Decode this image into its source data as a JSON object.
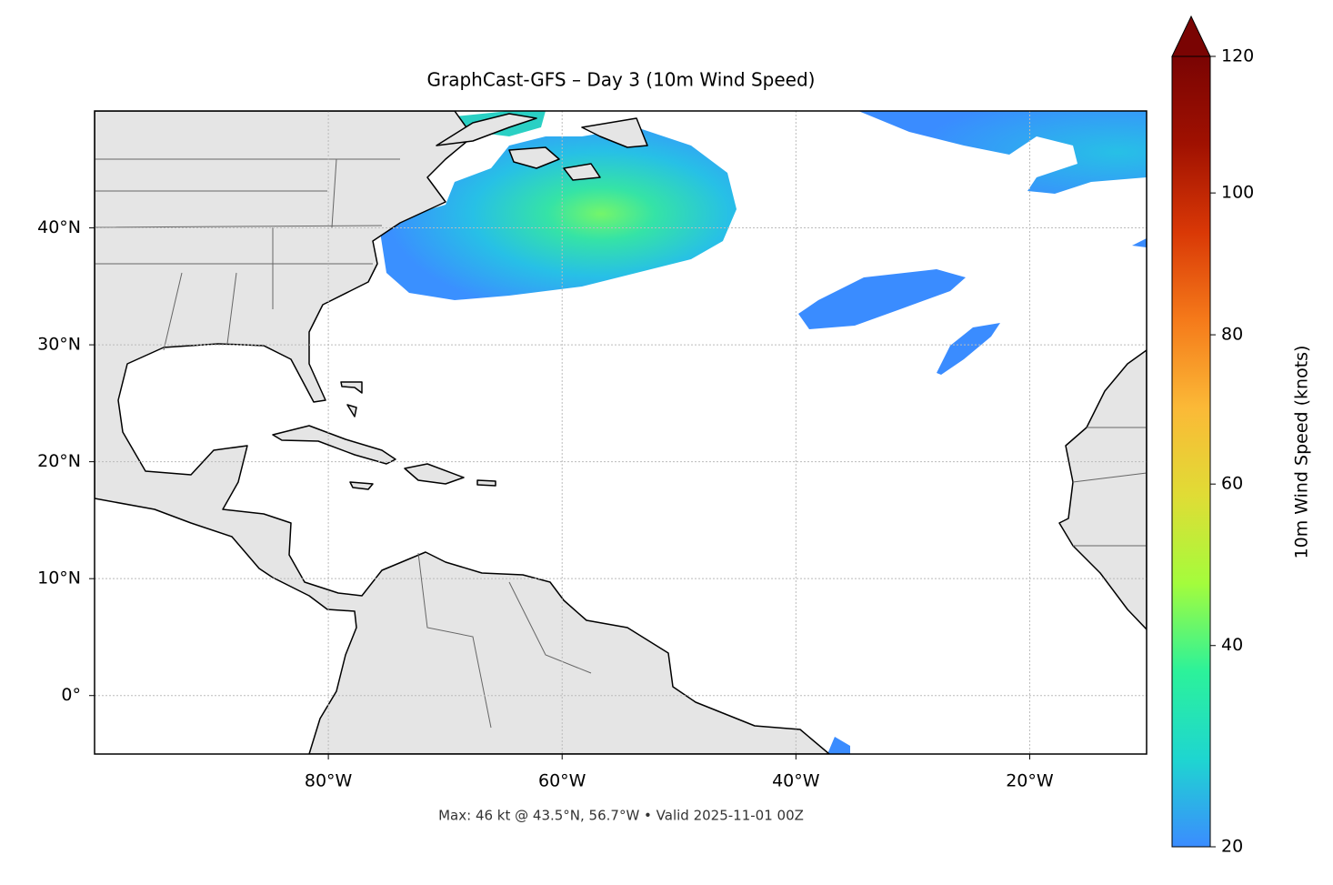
{
  "chart_data": {
    "type": "map",
    "title": "GraphCast-GFS – Day 3 (10m Wind Speed)",
    "footnote": "Max: 46 kt @ 43.5°N, 56.7°W • Valid 2025-11-01 00Z",
    "xlim": [
      -100,
      -10
    ],
    "ylim": [
      -5,
      50
    ],
    "xticks": [
      {
        "value": -80,
        "label": "80°W"
      },
      {
        "value": -60,
        "label": "60°W"
      },
      {
        "value": -40,
        "label": "40°W"
      },
      {
        "value": -20,
        "label": "20°W"
      }
    ],
    "yticks": [
      {
        "value": 0,
        "label": "0°"
      },
      {
        "value": 10,
        "label": "10°N"
      },
      {
        "value": 20,
        "label": "20°N"
      },
      {
        "value": 30,
        "label": "30°N"
      },
      {
        "value": 40,
        "label": "40°N"
      }
    ],
    "grid": true,
    "colorbar": {
      "label": "10m Wind Speed (knots)",
      "lim": [
        20,
        120
      ],
      "ticks": [
        20,
        40,
        60,
        80,
        100,
        120
      ],
      "norm": "power",
      "gamma": 0.85,
      "extend": "max",
      "cmap": "turbo"
    }
  }
}
